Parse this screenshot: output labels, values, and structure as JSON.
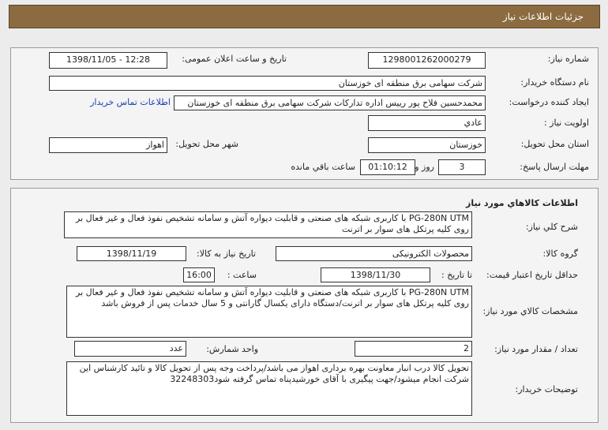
{
  "header": {
    "title": "جزئیات اطلاعات نیاز"
  },
  "need_info": {
    "need_number_label": "شماره نیاز:",
    "need_number": "1298001262000279",
    "announce_label": "تاریخ و ساعت اعلان عمومی:",
    "announce_value": "1398/11/05 - 12:28",
    "buyer_label": "نام دستگاه خریدار:",
    "buyer_value": "شرکت سهامی برق منطقه ای خوزستان",
    "creator_label": "ایجاد کننده درخواست:",
    "creator_value": "محمدحسین فلاح پور رییس اداره تدارکات شرکت سهامی برق منطقه ای خوزستان",
    "contact_link": "اطلاعات تماس خریدار",
    "priority_label": "اولویت نیاز :",
    "priority_value": "عادي",
    "province_label": "استان محل تحویل:",
    "province_value": "خوزستان",
    "city_label": "شهر محل تحویل:",
    "city_value": "اهواز",
    "deadline_label": "مهلت ارسال پاسخ:",
    "deadline_days": "3",
    "days_and": "روز و",
    "deadline_time": "01:10:12",
    "remaining": "ساعت باقي مانده"
  },
  "goods_info": {
    "title": "اطلاعات كالاهاي مورد نياز",
    "summary_label": "شرح كلي نياز:",
    "summary_value": "PG-280N UTM با کاربری شبکه های صنعتی و قابلیت دیواره آتش و سامانه تشخیص نفوذ فعال و غیر فعال بر روی کلیه پرتکل های سوار بر اترنت",
    "group_label": "گروه كالا:",
    "group_value": "محصولات الکترونیکی",
    "need_date_label": "تاریخ نیاز به کالا:",
    "need_date_value": "1398/11/19",
    "price_validity_label": "حداقل تاریخ اعتبار قیمت:",
    "to_date_label": "تا تاریخ :",
    "to_date_value": "1398/11/30",
    "hour_label": "ساعت :",
    "hour_value": "16:00",
    "spec_label": "مشخصات كالاي مورد نياز:",
    "spec_value": "PG-280N UTM با کاربری شبکه های صنعتی و قابلیت دیواره آتش و سامانه تشخیص نفوذ فعال و غیر فعال بر روی کلیه پرتکل های سوار بر اترنت/دستگاه دارای یکسال گارانتی و 5 سال خدمات پس از فروش باشد",
    "qty_label": "تعداد / مقدار مورد نیاز:",
    "qty_value": "2",
    "unit_label": "واحد شمارش:",
    "unit_value": "عدد",
    "notes_label": "توضیحات خریدار:",
    "notes_value": "تحویل کالا درب انبار معاونت بهره برداری اهواز می باشد/پرداخت وجه پس از تحویل کالا و تائید کارشناس این شرکت انجام میشود/جهت پیگیری با آقای خورشیدپناه تماس گرفته شود32248303"
  }
}
